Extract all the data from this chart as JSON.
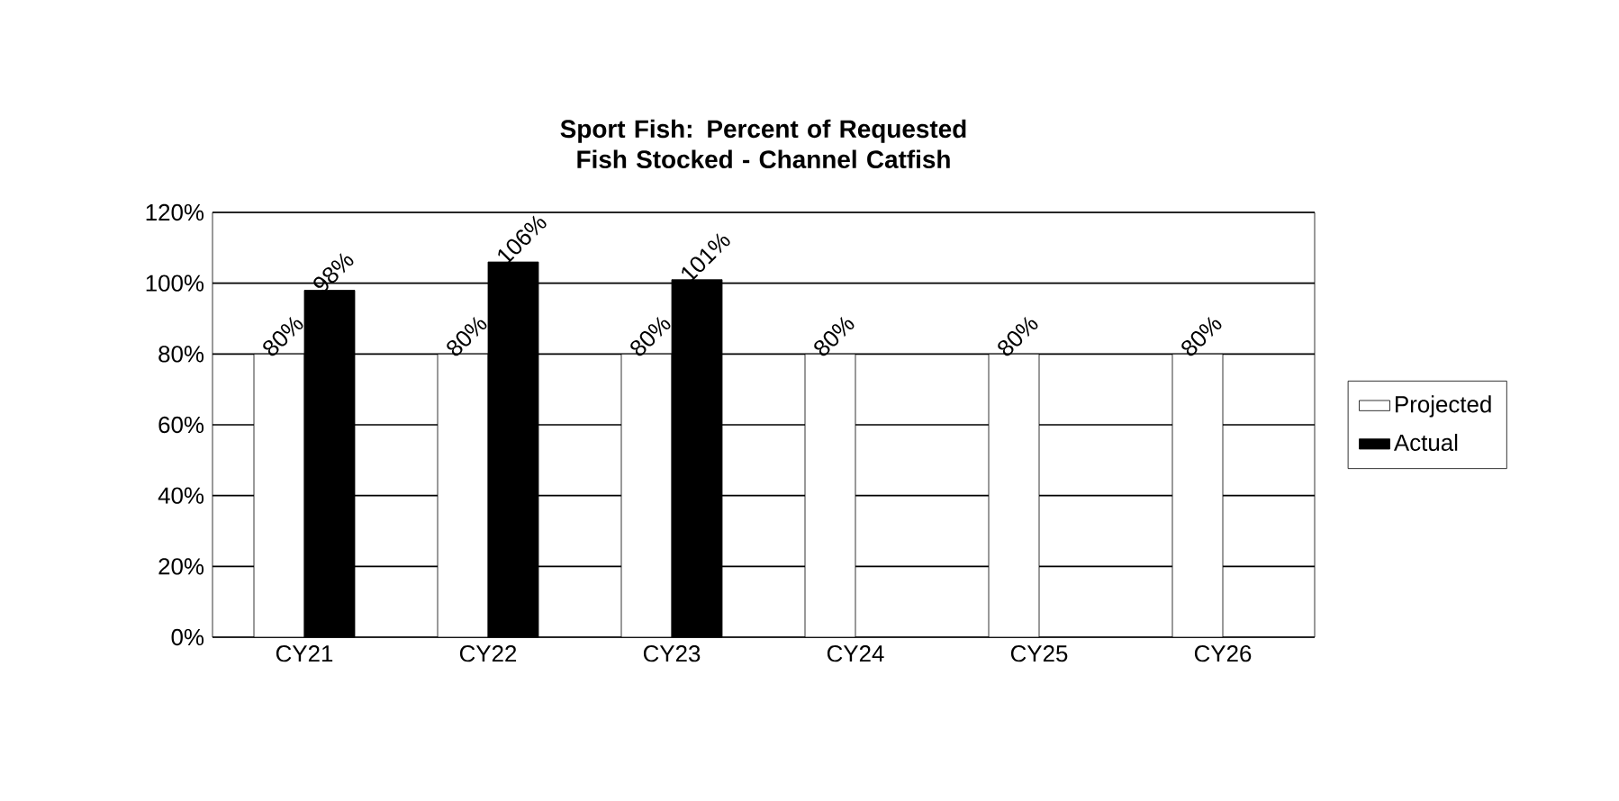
{
  "chart_data": {
    "type": "bar",
    "title": "Sport Fish: Percent of Requested Fish Stocked - Channel Catfish",
    "categories": [
      "CY21",
      "CY22",
      "CY23",
      "CY24",
      "CY25",
      "CY26"
    ],
    "series": [
      {
        "name": "Projected",
        "color": "#ffffff",
        "values": [
          80,
          80,
          80,
          80,
          80,
          80
        ],
        "value_labels": [
          "80%",
          "80%",
          "80%",
          "80%",
          "80%",
          "80%"
        ]
      },
      {
        "name": "Actual",
        "color": "#000000",
        "values": [
          98,
          106,
          101,
          null,
          null,
          null
        ],
        "value_labels": [
          "98%",
          "106%",
          "101%",
          null,
          null,
          null
        ]
      }
    ],
    "ylim": [
      0,
      120
    ],
    "yticks": [
      {
        "value": 0,
        "label": "0%"
      },
      {
        "value": 20,
        "label": "20%"
      },
      {
        "value": 40,
        "label": "40%"
      },
      {
        "value": 60,
        "label": "60%"
      },
      {
        "value": 80,
        "label": "80%"
      },
      {
        "value": 100,
        "label": "100%"
      },
      {
        "value": 120,
        "label": "120%"
      }
    ],
    "grid": "y",
    "legend": "right"
  }
}
